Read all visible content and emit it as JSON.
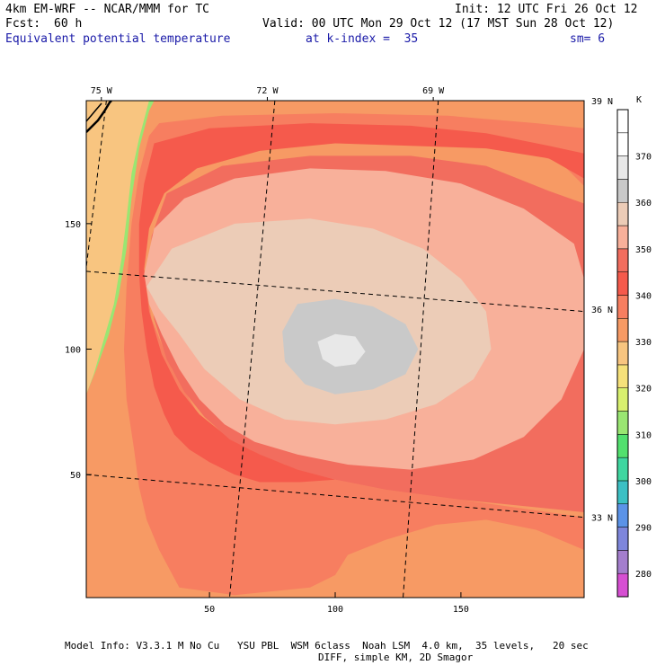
{
  "header": {
    "model": "4km EM-WRF -- NCAR/MMM for TC",
    "init": "Init: 12 UTC Fri 26 Oct 12",
    "fcst_label": "Fcst:",
    "fcst_value": "60 h",
    "valid": "Valid: 00 UTC Mon 29 Oct 12 (17 MST Sun 28 Oct 12)",
    "field": "Equivalent potential temperature",
    "level": "at k-index =  35",
    "sm": "sm= 6"
  },
  "chart_data": {
    "type": "heatmap",
    "field": "Equivalent potential temperature",
    "units": "K",
    "xlim": [
      1,
      199
    ],
    "ylim": [
      1,
      199
    ],
    "x_ticks": [
      50,
      100,
      150
    ],
    "y_ticks": [
      50,
      100,
      150
    ],
    "top_lon_labels": [
      {
        "label": "75 W",
        "x": 7
      },
      {
        "label": "72 W",
        "x": 73
      },
      {
        "label": "69 W",
        "x": 139
      }
    ],
    "right_lat_labels": [
      {
        "label": "39 N",
        "y": 199
      },
      {
        "label": "36 N",
        "y": 116
      },
      {
        "label": "33 N",
        "y": 33
      }
    ],
    "meridians": [
      {
        "top": [
          9,
          199
        ],
        "bottom": [
          -1,
          116
        ]
      },
      {
        "top": [
          76,
          199
        ],
        "bottom": [
          58,
          1
        ]
      },
      {
        "top": [
          141,
          199
        ],
        "bottom": [
          127,
          1
        ]
      }
    ],
    "parallels": [
      {
        "left": [
          1,
          131
        ],
        "right": [
          199,
          115
        ]
      },
      {
        "left": [
          1,
          50
        ],
        "right": [
          199,
          33
        ]
      }
    ],
    "colorbar": {
      "levels": [
        275,
        280,
        285,
        290,
        295,
        300,
        305,
        310,
        315,
        320,
        325,
        330,
        335,
        340,
        345,
        350,
        355,
        360,
        365,
        370,
        375,
        380
      ],
      "labels": [
        280,
        290,
        300,
        310,
        320,
        330,
        340,
        350,
        360,
        370
      ],
      "colors": [
        "#d64fd2",
        "#a47ecd",
        "#7e86db",
        "#5b93e8",
        "#3cc0c4",
        "#3fd6a0",
        "#52e06e",
        "#9ae672",
        "#d8f06e",
        "#f6e17a",
        "#f8c580",
        "#f79a64",
        "#f77e60",
        "#f55a4c",
        "#f26d5e",
        "#f8b09a",
        "#ecccb7",
        "#c9c9c9",
        "#e8e8e8",
        "#ffffff",
        "#ffffff"
      ]
    },
    "contours": [
      {
        "level": 315,
        "points": [
          [
            1,
            199
          ],
          [
            15,
            199
          ],
          [
            13,
            185
          ],
          [
            9,
            176
          ],
          [
            4,
            168
          ],
          [
            1,
            166
          ]
        ]
      },
      {
        "level": 320,
        "points": [
          [
            1,
            199
          ],
          [
            19,
            199
          ],
          [
            17,
            184
          ],
          [
            14,
            170
          ],
          [
            11,
            152
          ],
          [
            9,
            138
          ],
          [
            7,
            124
          ],
          [
            4,
            114
          ],
          [
            1,
            108
          ]
        ]
      },
      {
        "level": 325,
        "points": [
          [
            1,
            199
          ],
          [
            26,
            199
          ],
          [
            22,
            184
          ],
          [
            19,
            170
          ],
          [
            17,
            152
          ],
          [
            15,
            136
          ],
          [
            12,
            118
          ],
          [
            8,
            104
          ],
          [
            4,
            90
          ],
          [
            1,
            82
          ]
        ]
      },
      {
        "level": 330,
        "points": [
          [
            28,
            199
          ],
          [
            199,
            199
          ],
          [
            199,
            1
          ],
          [
            1,
            1
          ],
          [
            1,
            82
          ],
          [
            5,
            92
          ],
          [
            10,
            106
          ],
          [
            14,
            122
          ],
          [
            17,
            140
          ],
          [
            19,
            160
          ],
          [
            22,
            180
          ],
          [
            26,
            195
          ]
        ]
      },
      {
        "level": 335,
        "points": [
          [
            30,
            190
          ],
          [
            55,
            193
          ],
          [
            100,
            194
          ],
          [
            145,
            193
          ],
          [
            180,
            190
          ],
          [
            199,
            188
          ],
          [
            199,
            165
          ],
          [
            190,
            174
          ],
          [
            170,
            181
          ],
          [
            140,
            185
          ],
          [
            100,
            188
          ],
          [
            60,
            185
          ],
          [
            35,
            175
          ],
          [
            25,
            155
          ],
          [
            23,
            135
          ],
          [
            27,
            112
          ],
          [
            35,
            92
          ],
          [
            45,
            75
          ],
          [
            52,
            68
          ],
          [
            62,
            62
          ],
          [
            75,
            55
          ],
          [
            100,
            48
          ],
          [
            120,
            44
          ],
          [
            150,
            40
          ],
          [
            185,
            35
          ],
          [
            199,
            33
          ],
          [
            199,
            20
          ],
          [
            180,
            28
          ],
          [
            160,
            32
          ],
          [
            140,
            30
          ],
          [
            120,
            24
          ],
          [
            105,
            18
          ],
          [
            100,
            10
          ],
          [
            90,
            5
          ],
          [
            60,
            2
          ],
          [
            38,
            5
          ],
          [
            30,
            20
          ],
          [
            25,
            32
          ],
          [
            22,
            45
          ],
          [
            20,
            60
          ],
          [
            17,
            80
          ],
          [
            16,
            100
          ],
          [
            17,
            125
          ],
          [
            19,
            150
          ],
          [
            22,
            170
          ],
          [
            26,
            185
          ]
        ]
      },
      {
        "level": 340,
        "points": [
          [
            28,
            182
          ],
          [
            50,
            188
          ],
          [
            90,
            190
          ],
          [
            130,
            189
          ],
          [
            160,
            186
          ],
          [
            185,
            181
          ],
          [
            199,
            178
          ],
          [
            199,
            168
          ],
          [
            185,
            176
          ],
          [
            160,
            180
          ],
          [
            130,
            181
          ],
          [
            100,
            182
          ],
          [
            70,
            179
          ],
          [
            45,
            172
          ],
          [
            32,
            162
          ],
          [
            26,
            148
          ],
          [
            24,
            132
          ],
          [
            26,
            115
          ],
          [
            31,
            98
          ],
          [
            38,
            84
          ],
          [
            46,
            74
          ],
          [
            56,
            66
          ],
          [
            66,
            60
          ],
          [
            80,
            54
          ],
          [
            100,
            48
          ],
          [
            86,
            47
          ],
          [
            70,
            47
          ],
          [
            60,
            50
          ],
          [
            50,
            55
          ],
          [
            42,
            60
          ],
          [
            36,
            66
          ],
          [
            32,
            74
          ],
          [
            28,
            85
          ],
          [
            25,
            100
          ],
          [
            23,
            115
          ],
          [
            22,
            130
          ],
          [
            22,
            150
          ],
          [
            24,
            166
          ]
        ]
      },
      {
        "level": 345,
        "points": [
          [
            33,
            162
          ],
          [
            55,
            173
          ],
          [
            90,
            177
          ],
          [
            130,
            177
          ],
          [
            160,
            173
          ],
          [
            185,
            163
          ],
          [
            199,
            158
          ],
          [
            199,
            35
          ],
          [
            180,
            37
          ],
          [
            150,
            40
          ],
          [
            120,
            44
          ],
          [
            100,
            48
          ],
          [
            85,
            52
          ],
          [
            70,
            58
          ],
          [
            58,
            64
          ],
          [
            48,
            73
          ],
          [
            40,
            83
          ],
          [
            33,
            96
          ],
          [
            28,
            112
          ],
          [
            26,
            128
          ],
          [
            27,
            145
          ]
        ]
      },
      {
        "level": 350,
        "points": [
          [
            24,
            130
          ],
          [
            28,
            148
          ],
          [
            40,
            160
          ],
          [
            60,
            168
          ],
          [
            90,
            172
          ],
          [
            120,
            171
          ],
          [
            150,
            166
          ],
          [
            175,
            156
          ],
          [
            195,
            142
          ],
          [
            199,
            128
          ],
          [
            199,
            100
          ],
          [
            190,
            80
          ],
          [
            175,
            65
          ],
          [
            155,
            56
          ],
          [
            130,
            52
          ],
          [
            105,
            54
          ],
          [
            85,
            58
          ],
          [
            68,
            63
          ],
          [
            56,
            70
          ],
          [
            46,
            80
          ],
          [
            38,
            92
          ],
          [
            31,
            106
          ],
          [
            26,
            118
          ]
        ]
      },
      {
        "level": 355,
        "points": [
          [
            25,
            125
          ],
          [
            35,
            140
          ],
          [
            60,
            150
          ],
          [
            90,
            152
          ],
          [
            115,
            148
          ],
          [
            135,
            140
          ],
          [
            150,
            128
          ],
          [
            160,
            115
          ],
          [
            162,
            100
          ],
          [
            155,
            88
          ],
          [
            140,
            78
          ],
          [
            120,
            72
          ],
          [
            100,
            70
          ],
          [
            80,
            72
          ],
          [
            62,
            80
          ],
          [
            48,
            92
          ],
          [
            38,
            106
          ],
          [
            30,
            116
          ]
        ]
      },
      {
        "level": 360,
        "points": [
          [
            85,
            118
          ],
          [
            100,
            120
          ],
          [
            115,
            117
          ],
          [
            128,
            110
          ],
          [
            133,
            100
          ],
          [
            128,
            90
          ],
          [
            115,
            84
          ],
          [
            100,
            82
          ],
          [
            88,
            86
          ],
          [
            80,
            95
          ],
          [
            79,
            107
          ]
        ]
      },
      {
        "level": 365,
        "points": [
          [
            93,
            103
          ],
          [
            100,
            106
          ],
          [
            108,
            105
          ],
          [
            112,
            99
          ],
          [
            108,
            94
          ],
          [
            100,
            93
          ],
          [
            95,
            96
          ]
        ]
      }
    ]
  },
  "footer": {
    "line1": "Model Info: V3.3.1 M No Cu   YSU PBL  WSM 6class  Noah LSM  4.0 km,  35 levels,   20 sec",
    "line2": "DIFF, simple KM, 2D Smagor"
  }
}
